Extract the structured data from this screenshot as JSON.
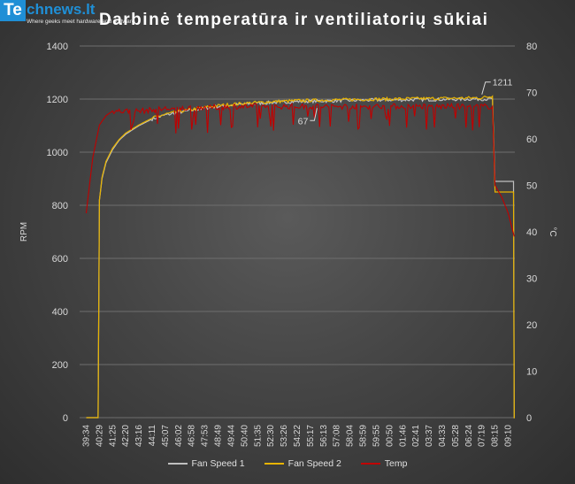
{
  "logo": {
    "badge": "Te",
    "word": "chnews.lt",
    "tagline": "Where geeks meet hardware and software"
  },
  "chart_data": {
    "type": "line",
    "title": "Darbinė temperatūra ir ventiliatorių sūkiai",
    "ylabel": "RPM",
    "y2label": "°C",
    "ylim": [
      0,
      1400
    ],
    "y2lim": [
      0,
      80
    ],
    "yticks": [
      0,
      200,
      400,
      600,
      800,
      1000,
      1200,
      1400
    ],
    "y2ticks": [
      0,
      10,
      20,
      30,
      40,
      50,
      60,
      70,
      80
    ],
    "grid": true,
    "legend_position": "bottom",
    "categories": [
      "39:34",
      "40:29",
      "41:25",
      "42:20",
      "43:16",
      "44:11",
      "45:07",
      "46:02",
      "46:58",
      "47:53",
      "48:49",
      "49:44",
      "50:40",
      "51:35",
      "52:30",
      "53:26",
      "54:22",
      "55:17",
      "56:13",
      "57:08",
      "58:04",
      "58:59",
      "59:55",
      "00:50",
      "01:46",
      "02:41",
      "03:37",
      "04:33",
      "05:28",
      "06:24",
      "07:19",
      "08:15",
      "09:10"
    ],
    "series": [
      {
        "name": "Fan Speed 1",
        "axis": "left",
        "color": "#bfbfbf",
        "points": [
          [
            0,
            0
          ],
          [
            0.9,
            0
          ],
          [
            1.0,
            820
          ],
          [
            1.2,
            900
          ],
          [
            1.5,
            960
          ],
          [
            2,
            1010
          ],
          [
            2.5,
            1045
          ],
          [
            3,
            1068
          ],
          [
            4,
            1100
          ],
          [
            5,
            1125
          ],
          [
            6,
            1140
          ],
          [
            7,
            1150
          ],
          [
            8,
            1158
          ],
          [
            9,
            1166
          ],
          [
            10,
            1172
          ],
          [
            11,
            1177
          ],
          [
            12,
            1181
          ],
          [
            13,
            1184
          ],
          [
            14,
            1187
          ],
          [
            15,
            1189
          ],
          [
            16,
            1191
          ],
          [
            17,
            1192
          ],
          [
            18,
            1193
          ],
          [
            19,
            1194
          ],
          [
            20,
            1195
          ],
          [
            21,
            1196
          ],
          [
            22,
            1196
          ],
          [
            23,
            1197
          ],
          [
            24,
            1197
          ],
          [
            25,
            1198
          ],
          [
            26,
            1198
          ],
          [
            27,
            1199
          ],
          [
            28,
            1199
          ],
          [
            29,
            1200
          ],
          [
            30,
            1200
          ],
          [
            30.8,
            1200
          ],
          [
            31.0,
            890
          ],
          [
            32.4,
            890
          ],
          [
            32.45,
            0
          ],
          [
            32.5,
            0
          ]
        ]
      },
      {
        "name": "Fan Speed 2",
        "axis": "left",
        "color": "#e8b400",
        "points": [
          [
            0,
            0
          ],
          [
            0.9,
            0
          ],
          [
            1.0,
            820
          ],
          [
            1.2,
            905
          ],
          [
            1.5,
            965
          ],
          [
            2,
            1015
          ],
          [
            2.5,
            1048
          ],
          [
            3,
            1072
          ],
          [
            4,
            1103
          ],
          [
            5,
            1128
          ],
          [
            6,
            1143
          ],
          [
            7,
            1153
          ],
          [
            8,
            1161
          ],
          [
            9,
            1169
          ],
          [
            10,
            1175
          ],
          [
            11,
            1180
          ],
          [
            12,
            1184
          ],
          [
            13,
            1187
          ],
          [
            14,
            1190
          ],
          [
            15,
            1192
          ],
          [
            16,
            1194
          ],
          [
            17,
            1195
          ],
          [
            18,
            1196
          ],
          [
            19,
            1197
          ],
          [
            20,
            1198
          ],
          [
            21,
            1199
          ],
          [
            22,
            1200
          ],
          [
            23,
            1200
          ],
          [
            24,
            1201
          ],
          [
            25,
            1202
          ],
          [
            26,
            1202
          ],
          [
            27,
            1203
          ],
          [
            28,
            1203
          ],
          [
            29,
            1204
          ],
          [
            30,
            1205
          ],
          [
            30.8,
            1211
          ],
          [
            31.0,
            850
          ],
          [
            32.4,
            850
          ],
          [
            32.45,
            0
          ],
          [
            32.5,
            0
          ]
        ]
      },
      {
        "name": "Temp",
        "axis": "right",
        "color": "#c00000",
        "points": [
          [
            0,
            44
          ],
          [
            0.5,
            56
          ],
          [
            1,
            63
          ],
          [
            1.5,
            65
          ],
          [
            2,
            66
          ],
          [
            3,
            66
          ],
          [
            4,
            66
          ],
          [
            5,
            66.2
          ],
          [
            6,
            66.5
          ],
          [
            7,
            66.5
          ],
          [
            8,
            66.7
          ],
          [
            9,
            66.8
          ],
          [
            10,
            66.8
          ],
          [
            11,
            67
          ],
          [
            12,
            67
          ],
          [
            13,
            67
          ],
          [
            14,
            67
          ],
          [
            15,
            67
          ],
          [
            16,
            67
          ],
          [
            17,
            67
          ],
          [
            18,
            67
          ],
          [
            19,
            67
          ],
          [
            20,
            67
          ],
          [
            21,
            67
          ],
          [
            22,
            67
          ],
          [
            23,
            67
          ],
          [
            24,
            67
          ],
          [
            25,
            67
          ],
          [
            26,
            67
          ],
          [
            27,
            67
          ],
          [
            28,
            67
          ],
          [
            29,
            67
          ],
          [
            30,
            67
          ],
          [
            30.8,
            67
          ],
          [
            31.0,
            50
          ],
          [
            31.5,
            47.5
          ],
          [
            32,
            44
          ],
          [
            32.45,
            39
          ]
        ]
      }
    ],
    "annotations": [
      {
        "text": "1211",
        "x": 30,
        "series": "Fan Speed 2",
        "value": 1211
      },
      {
        "text": "67",
        "x": 17.5,
        "series": "Temp",
        "value": 67
      }
    ]
  }
}
